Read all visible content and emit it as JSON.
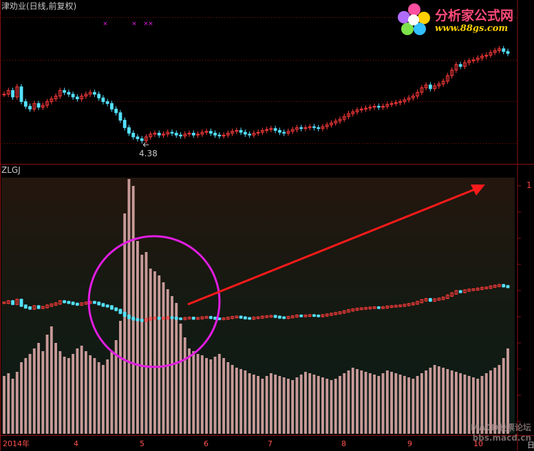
{
  "header": {
    "stock_title": "津劝业(日线,前复权)",
    "indicator_name": "ZLGJ",
    "low_marker": "4.38",
    "axis_top_value": "1",
    "right_axis_label": "日"
  },
  "logo": {
    "text": "分析家公式网",
    "url": "www.88gs.com"
  },
  "watermark": {
    "line1": "MACD股票论坛",
    "line2": "bbs.macd.cn"
  },
  "colors": {
    "up": "#ff3b3b",
    "down": "#54e1ff",
    "volume_bar": "#c89a98",
    "circle": "#e21de2",
    "arrow": "#ff1a1a",
    "grid": "#8b1010"
  },
  "chart_data": [
    {
      "type": "candlestick",
      "title": "津劝业(日线,前复权)",
      "x_axis_ticks": [
        "2014年",
        "4",
        "5",
        "6",
        "7",
        "8",
        "9",
        "10"
      ],
      "annotations": [
        "4.38"
      ],
      "close_prices": [
        4.88,
        4.92,
        4.85,
        4.96,
        4.8,
        4.75,
        4.72,
        4.78,
        4.74,
        4.76,
        4.8,
        4.83,
        4.86,
        4.92,
        4.9,
        4.88,
        4.85,
        4.83,
        4.86,
        4.88,
        4.9,
        4.88,
        4.84,
        4.8,
        4.78,
        4.72,
        4.68,
        4.6,
        4.52,
        4.46,
        4.42,
        4.4,
        4.38,
        4.42,
        4.45,
        4.46,
        4.44,
        4.45,
        4.47,
        4.46,
        4.44,
        4.43,
        4.45,
        4.46,
        4.44,
        4.45,
        4.47,
        4.48,
        4.46,
        4.44,
        4.43,
        4.44,
        4.46,
        4.48,
        4.49,
        4.47,
        4.45,
        4.44,
        4.46,
        4.47,
        4.49,
        4.5,
        4.51,
        4.49,
        4.47,
        4.46,
        4.48,
        4.5,
        4.52,
        4.51,
        4.52,
        4.53,
        4.52,
        4.51,
        4.53,
        4.55,
        4.57,
        4.59,
        4.61,
        4.64,
        4.67,
        4.69,
        4.71,
        4.72,
        4.73,
        4.74,
        4.75,
        4.74,
        4.75,
        4.77,
        4.78,
        4.79,
        4.8,
        4.82,
        4.84,
        4.86,
        4.9,
        4.95,
        4.98,
        4.94,
        4.97,
        4.99,
        5.02,
        5.08,
        5.14,
        5.2,
        5.18,
        5.22,
        5.24,
        5.25,
        5.27,
        5.29,
        5.3,
        5.33,
        5.35,
        5.37,
        5.34,
        5.32
      ],
      "volume": [
        0.42,
        0.44,
        0.4,
        0.45,
        0.52,
        0.55,
        0.58,
        0.62,
        0.66,
        0.6,
        0.72,
        0.78,
        0.66,
        0.6,
        0.56,
        0.55,
        0.58,
        0.62,
        0.64,
        0.6,
        0.57,
        0.55,
        0.52,
        0.5,
        0.54,
        0.6,
        0.68,
        0.82,
        1.6,
        1.85,
        1.8,
        1.4,
        1.3,
        1.32,
        1.2,
        1.18,
        1.15,
        1.1,
        1.05,
        1.0,
        0.95,
        0.8,
        0.7,
        0.62,
        0.6,
        0.58,
        0.57,
        0.55,
        0.54,
        0.56,
        0.58,
        0.55,
        0.52,
        0.5,
        0.48,
        0.47,
        0.46,
        0.44,
        0.43,
        0.42,
        0.4,
        0.42,
        0.44,
        0.43,
        0.42,
        0.41,
        0.4,
        0.39,
        0.41,
        0.43,
        0.45,
        0.44,
        0.43,
        0.42,
        0.41,
        0.4,
        0.39,
        0.4,
        0.42,
        0.44,
        0.46,
        0.48,
        0.47,
        0.46,
        0.45,
        0.44,
        0.43,
        0.42,
        0.44,
        0.46,
        0.45,
        0.44,
        0.43,
        0.42,
        0.41,
        0.4,
        0.42,
        0.44,
        0.46,
        0.48,
        0.5,
        0.49,
        0.48,
        0.47,
        0.46,
        0.45,
        0.44,
        0.43,
        0.42,
        0.41,
        0.4,
        0.42,
        0.44,
        0.46,
        0.48,
        0.5,
        0.55,
        0.62
      ]
    },
    {
      "type": "line",
      "title": "ZLGJ",
      "x_axis_ticks": [
        "2014年",
        "4",
        "5",
        "6",
        "7",
        "8",
        "9",
        "10"
      ],
      "y_axis_ticks": [
        "1"
      ]
    }
  ]
}
